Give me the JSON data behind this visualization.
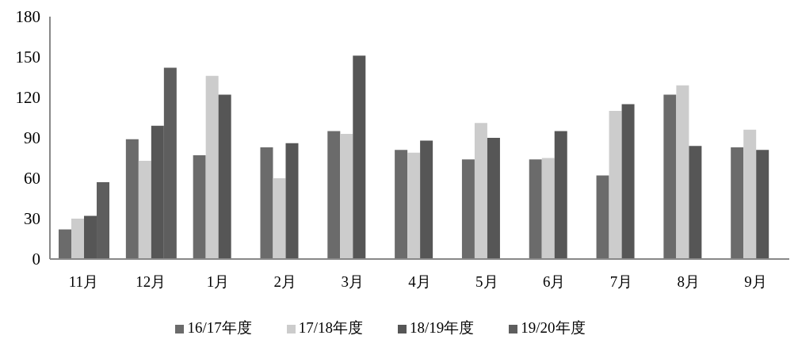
{
  "chart_data": {
    "type": "bar",
    "categories": [
      "11月",
      "12月",
      "1月",
      "2月",
      "3月",
      "4月",
      "5月",
      "6月",
      "7月",
      "8月",
      "9月"
    ],
    "series": [
      {
        "name": "16/17年度",
        "color": "#6b6b6b",
        "values": [
          22,
          89,
          77,
          83,
          95,
          81,
          74,
          74,
          62,
          122,
          83
        ]
      },
      {
        "name": "17/18年度",
        "color": "#cccccc",
        "values": [
          30,
          73,
          136,
          60,
          93,
          79,
          101,
          75,
          110,
          129,
          96
        ]
      },
      {
        "name": "18/19年度",
        "color": "#565656",
        "values": [
          32,
          99,
          122,
          86,
          151,
          88,
          90,
          95,
          115,
          84,
          81
        ]
      },
      {
        "name": "19/20年度",
        "color": "#5e5e5e",
        "values": [
          57,
          142,
          null,
          null,
          null,
          null,
          null,
          null,
          null,
          null,
          null
        ]
      }
    ],
    "ylim": [
      0,
      180
    ],
    "yticks": [
      0,
      30,
      60,
      90,
      120,
      150,
      180
    ],
    "grid": false,
    "legend": "bottom"
  }
}
